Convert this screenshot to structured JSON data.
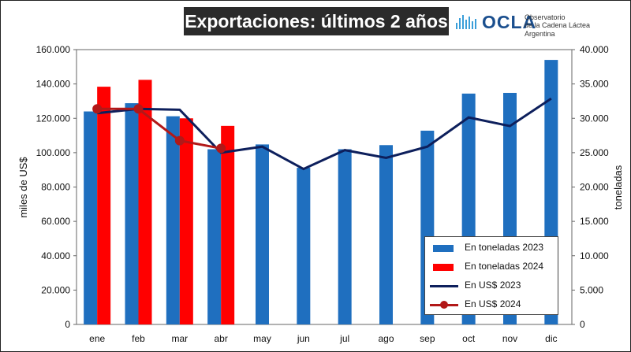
{
  "title": "Exportaciones: últimos 2 años",
  "logo": {
    "name": "OCLA",
    "line1": "Observatorio",
    "line2": "de la Cadena Láctea",
    "line3": "Argentina"
  },
  "colors": {
    "bars2023": "#1f6fbf",
    "bars2024": "#ff0000",
    "line2023": "#0d1f5c",
    "line2024": "#b21818"
  },
  "chart_data": {
    "type": "bar",
    "title": "Exportaciones: últimos 2 años",
    "categories": [
      "ene",
      "feb",
      "mar",
      "abr",
      "may",
      "jun",
      "jul",
      "ago",
      "sep",
      "oct",
      "nov",
      "dic"
    ],
    "ylabel_left": "miles de US$",
    "ylabel_right": "toneladas",
    "ylim_left": [
      0,
      160000
    ],
    "ylim_right": [
      0,
      40000
    ],
    "yticks_left": [
      "0",
      "20.000",
      "40.000",
      "60.000",
      "80.000",
      "100.000",
      "120.000",
      "140.000",
      "160.000"
    ],
    "yticks_right": [
      "0",
      "5.000",
      "10.000",
      "15.000",
      "20.000",
      "25.000",
      "30.000",
      "35.000",
      "40.000"
    ],
    "grid": false,
    "legend_position": "bottom-right",
    "series": [
      {
        "name": "En toneladas 2023",
        "kind": "bar",
        "axis": "right",
        "values": [
          31000,
          32200,
          30300,
          25500,
          26200,
          22800,
          25500,
          26100,
          28200,
          33600,
          33700,
          38500
        ]
      },
      {
        "name": "En toneladas 2024",
        "kind": "bar",
        "axis": "right",
        "values": [
          34600,
          35600,
          30000,
          28900,
          null,
          null,
          null,
          null,
          null,
          null,
          null,
          null
        ]
      },
      {
        "name": "En US$ 2023",
        "kind": "line",
        "axis": "left",
        "values": [
          123000,
          125500,
          125000,
          100000,
          103500,
          90500,
          101500,
          97000,
          103500,
          120500,
          115500,
          131500
        ]
      },
      {
        "name": "En US$ 2024",
        "kind": "line",
        "axis": "left",
        "values": [
          125500,
          125500,
          107000,
          102500,
          null,
          null,
          null,
          null,
          null,
          null,
          null,
          null
        ]
      }
    ]
  }
}
